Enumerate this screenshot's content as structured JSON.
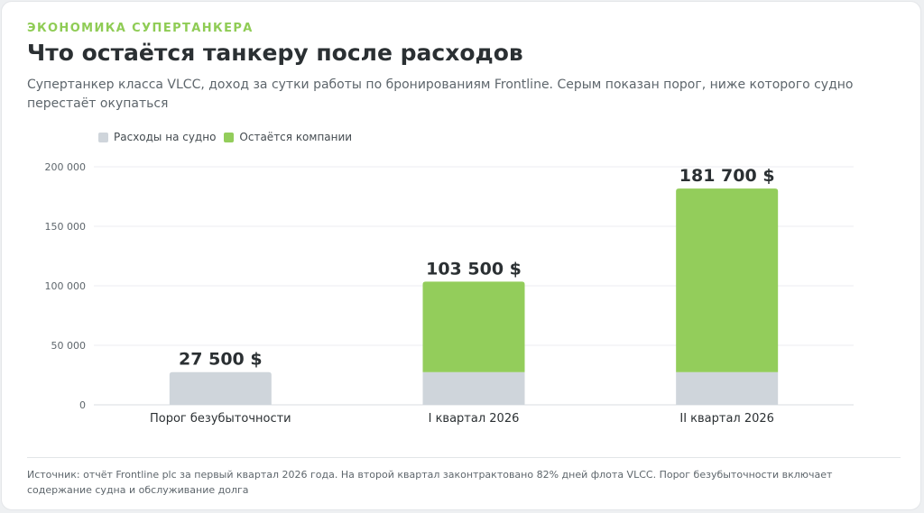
{
  "header": {
    "eyebrow": "ЭКОНОМИКА СУПЕРТАНКЕРА",
    "title": "Что остаётся танкеру после расходов",
    "subtitle": "Супертанкер класса VLCC, доход за сутки работы по бронированиям Frontline. Серым показан порог, ниже которого судно перестаёт окупаться"
  },
  "footnote": "Источник: отчёт Frontline plc за первый квартал 2026 года. На второй квартал законтрактовано 82% дней флота VLCC. Порог безубыточности включает содержание судна и обслуживание долга",
  "colors": {
    "accent": "#8fcc55",
    "expenses": "#cfd5db",
    "remainder": "#93cd5b"
  },
  "chart_data": {
    "type": "bar",
    "stacked": true,
    "categories": [
      "Порог безубыточности",
      "I квартал 2026",
      "II квартал 2026"
    ],
    "series": [
      {
        "name": "Расходы на судно",
        "values": [
          27500,
          27500,
          27500
        ]
      },
      {
        "name": "Остаётся компании",
        "values": [
          0,
          76000,
          154200
        ]
      }
    ],
    "totals": [
      27500,
      103500,
      181700
    ],
    "data_labels": [
      "27 500 $",
      "103 500 $",
      "181 700 $"
    ],
    "ylim": [
      0,
      200000
    ],
    "yticks": [
      0,
      50000,
      100000,
      150000,
      200000
    ],
    "ytick_labels": [
      "0",
      "50 000",
      "100 000",
      "150 000",
      "200 000"
    ],
    "grid": true,
    "legend_position": "top-left"
  }
}
